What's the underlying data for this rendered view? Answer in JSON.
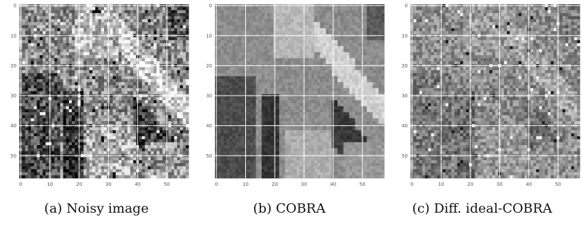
{
  "figure": {
    "axis": {
      "y_ticks": [
        "0",
        "10",
        "20",
        "30",
        "40",
        "50"
      ],
      "x_ticks": [
        "0",
        "10",
        "20",
        "30",
        "40",
        "50"
      ],
      "grid": true,
      "grid_color": "#ffffff"
    },
    "panels": [
      {
        "id": "noisy",
        "caption": "(a) Noisy image",
        "image_description": "grayscale 58x58 pixel patch, heavy salt-and-pepper noise"
      },
      {
        "id": "cobra",
        "caption": "(b) COBRA",
        "image_description": "grayscale 58x58 pixel patch, denoised and blocky"
      },
      {
        "id": "diff",
        "caption": "(c) Diff. ideal-COBRA",
        "image_description": "grayscale 58x58 pixel difference image, mostly mid-gray"
      }
    ]
  }
}
